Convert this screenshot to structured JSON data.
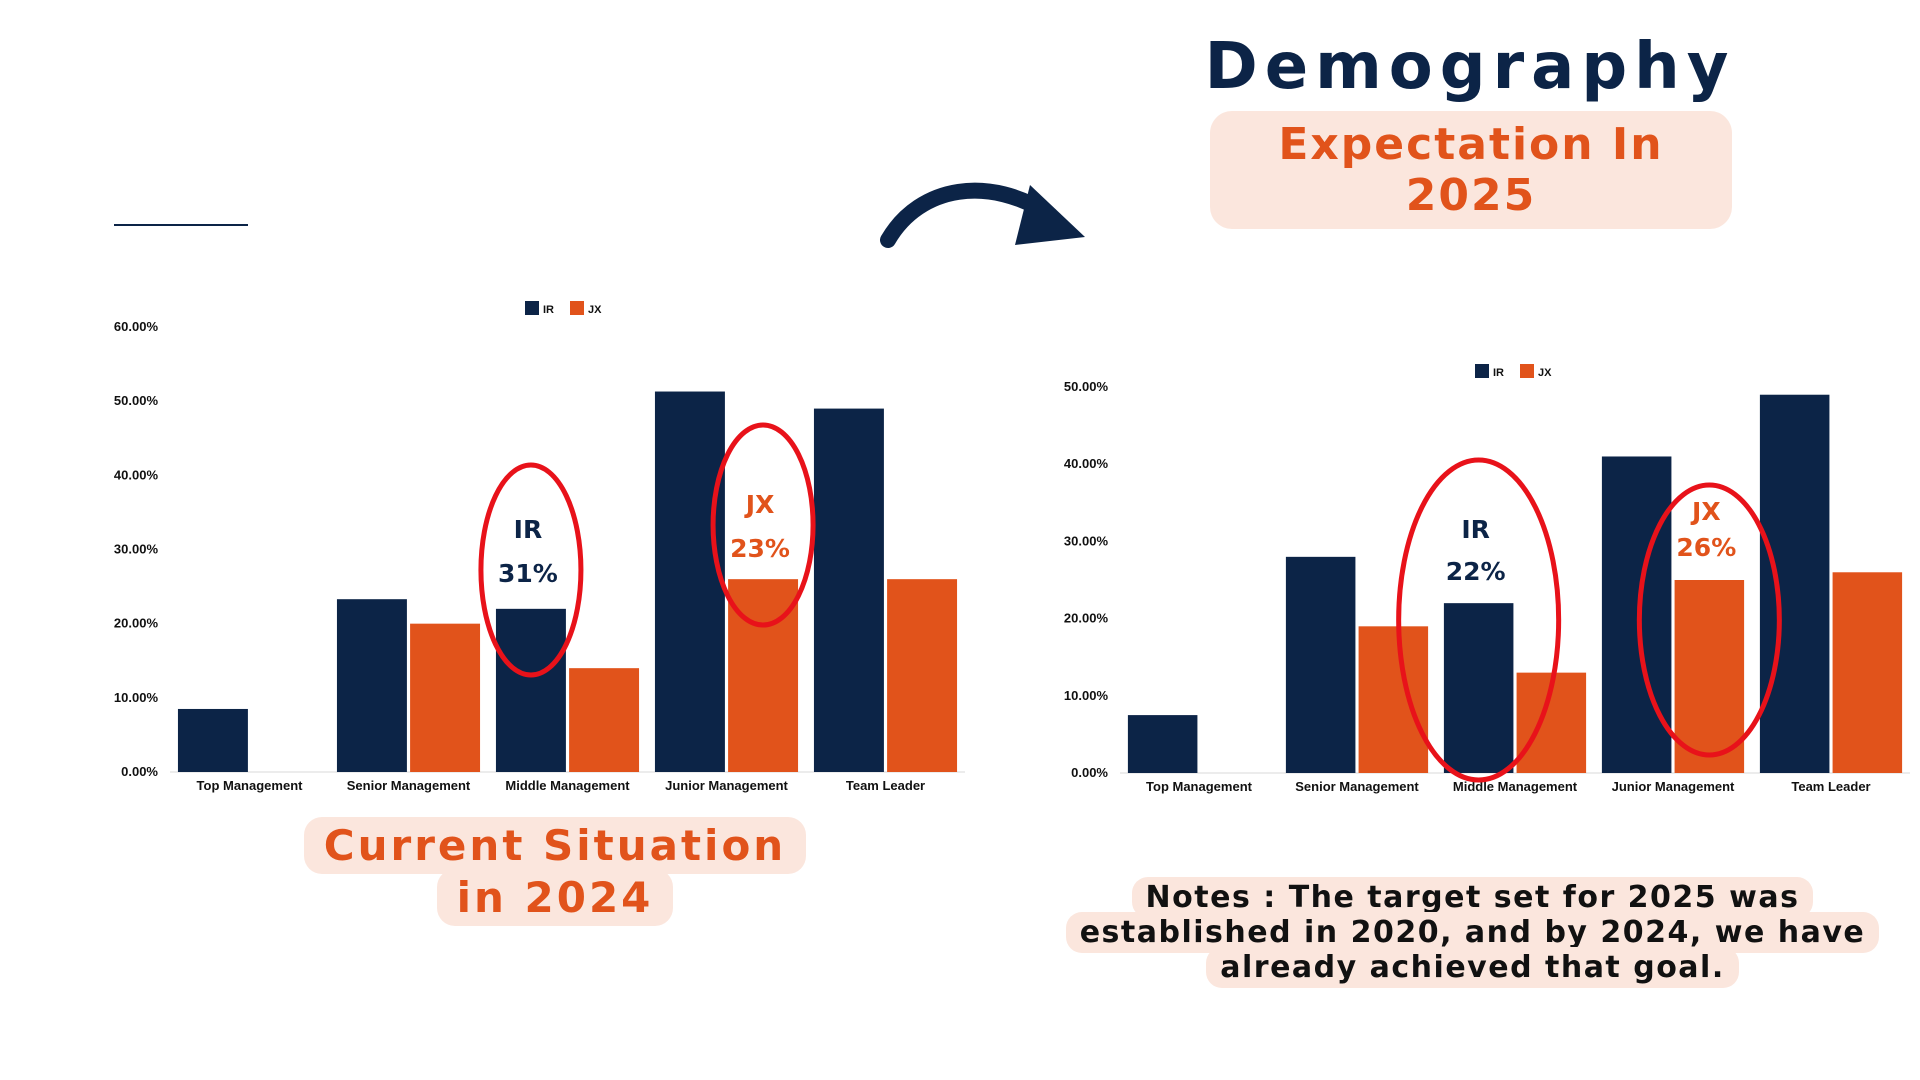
{
  "header": {
    "title": "Demography",
    "subtitle": "Expectation In 2025"
  },
  "captions": {
    "left": "Current Situation in 2024",
    "notes": "Notes : The target set for 2025 was established in 2020, and by 2024, we have already achieved that goal."
  },
  "colors": {
    "navy": "#0c2447",
    "orange": "#e1531b",
    "highlight_red": "#e8121a",
    "caption_bg": "#fbe6dd"
  },
  "icons": [
    "curved-arrow-icon"
  ],
  "chart_data": [
    {
      "type": "bar",
      "categories": [
        "Top Management",
        "Senior Management",
        "Middle Management",
        "Junior Management",
        "Team Leader"
      ],
      "series": [
        {
          "name": "IR",
          "values": [
            8.5,
            23.3,
            22,
            51.3,
            49
          ],
          "color": "#0c2447"
        },
        {
          "name": "JX",
          "values": [
            0,
            20,
            14,
            26,
            26
          ],
          "color": "#e1531b"
        }
      ],
      "ylim": [
        0,
        60
      ],
      "yticks": [
        "0.00%",
        "10.00%",
        "20.00%",
        "30.00%",
        "40.00%",
        "50.00%",
        "60.00%"
      ],
      "legend": "top",
      "grid": false,
      "annotations": [
        {
          "category": "Middle Management",
          "label": "IR",
          "value": "31%",
          "color": "#0c2447"
        },
        {
          "category": "Junior Management",
          "label": "JX",
          "value": "23%",
          "color": "#e1531b"
        }
      ]
    },
    {
      "type": "bar",
      "categories": [
        "Top Management",
        "Senior Management",
        "Middle Management",
        "Junior Management",
        "Team Leader"
      ],
      "series": [
        {
          "name": "IR",
          "values": [
            7.5,
            28,
            22,
            41,
            49
          ],
          "color": "#0c2447"
        },
        {
          "name": "JX",
          "values": [
            0,
            19,
            13,
            25,
            26
          ],
          "color": "#e1531b"
        }
      ],
      "ylim": [
        0,
        50
      ],
      "yticks": [
        "0.00%",
        "10.00%",
        "20.00%",
        "30.00%",
        "40.00%",
        "50.00%"
      ],
      "legend": "top",
      "grid": false,
      "annotations": [
        {
          "category": "Middle Management",
          "label": "IR",
          "value": "22%",
          "color": "#0c2447"
        },
        {
          "category": "Junior Management",
          "label": "JX",
          "value": "26%",
          "color": "#e1531b"
        }
      ]
    }
  ]
}
